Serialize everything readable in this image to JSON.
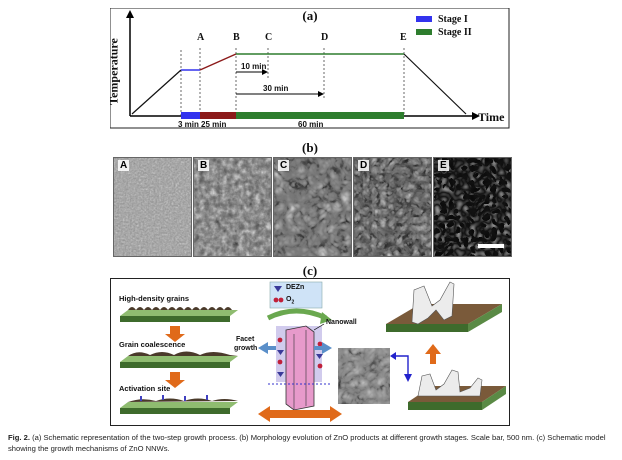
{
  "panel_a": {
    "label": "(a)",
    "y_axis_label": "Temperature",
    "x_axis_label": "Time",
    "points": [
      "A",
      "B",
      "C",
      "D",
      "E"
    ],
    "intervals": [
      "10 min",
      "30 min"
    ],
    "stage_durations": [
      "3 min",
      "25 min",
      "60 min"
    ],
    "legend": [
      {
        "name": "Stage I",
        "color": "#3333ee"
      },
      {
        "name": "Stage II",
        "color": "#2e7d2e"
      }
    ],
    "colors": {
      "ramp": "#111111",
      "stage1": "#3333ee",
      "stage_intermediate": "#8b1a1a",
      "stage2": "#2e7d2e"
    }
  },
  "panel_b": {
    "label": "(b)",
    "images": [
      "A",
      "B",
      "C",
      "D",
      "E"
    ]
  },
  "panel_c": {
    "label": "(c)",
    "texts": {
      "high_density": "High-density grains",
      "coalescence": "Grain coalescence",
      "activation": "Activation site",
      "dezn": "DEZn",
      "o2_prefix": "O",
      "o2_sub": "2",
      "facet": "Facet",
      "growth": "growth",
      "nanowall": "Nanowall"
    }
  },
  "caption": {
    "fig": "Fig. 2.",
    "text": " (a) Schematic representation of the two-step growth process. (b) Morphology evolution of ZnO products at different growth stages. Scale bar, 500 nm. (c) Schematic model showing the growth mechanisms of ZnO NNWs."
  }
}
